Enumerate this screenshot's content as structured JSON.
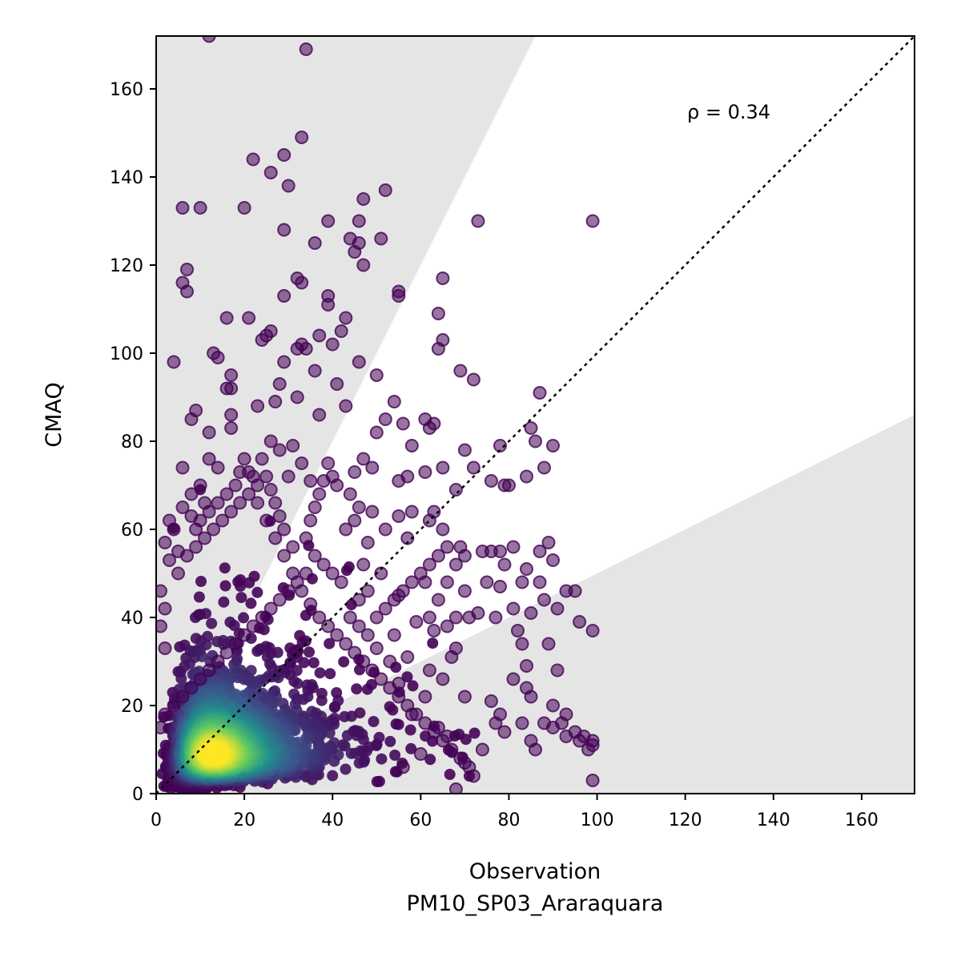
{
  "chart_data": {
    "type": "scatter",
    "title": "",
    "xlabel": "Observation",
    "xlabel_line2": "PM10_SP03_Araraquara",
    "ylabel": "CMAQ",
    "xlim": [
      0,
      172
    ],
    "ylim": [
      0,
      172
    ],
    "xticks": [
      0,
      20,
      40,
      60,
      80,
      100,
      120,
      140,
      160
    ],
    "yticks": [
      0,
      20,
      40,
      60,
      80,
      100,
      120,
      140,
      160
    ],
    "xtick_labels": [
      "0",
      "20",
      "40",
      "60",
      "80",
      "100",
      "120",
      "140",
      "160"
    ],
    "ytick_labels": [
      "0",
      "20",
      "40",
      "60",
      "80",
      "100",
      "120",
      "140",
      "160"
    ],
    "annotation": "ρ = 0.34",
    "reference_line": {
      "slope": 1,
      "style": "dotted",
      "color": "#000000"
    },
    "shaded_regions": [
      {
        "description": "above factor-of-2 band",
        "lower_slope": 2,
        "color": "#e5e5e5"
      },
      {
        "description": "below factor-of-2 band",
        "upper_slope": 0.5,
        "color": "#e5e5e5"
      }
    ],
    "density_peak": {
      "x": 13,
      "y": 9
    },
    "colormap": [
      "#440154",
      "#3b528b",
      "#21918c",
      "#5ec962",
      "#fde725"
    ],
    "grid": false,
    "legend": "none",
    "series": [
      {
        "points": [
          [
            12,
            172
          ],
          [
            34,
            169
          ],
          [
            33,
            149
          ],
          [
            22,
            144
          ],
          [
            29,
            145
          ],
          [
            26,
            141
          ],
          [
            30,
            138
          ],
          [
            52,
            137
          ],
          [
            6,
            133
          ],
          [
            10,
            133
          ],
          [
            20,
            133
          ],
          [
            47,
            135
          ],
          [
            73,
            130
          ],
          [
            99,
            130
          ],
          [
            39,
            130
          ],
          [
            46,
            130
          ],
          [
            29,
            128
          ],
          [
            44,
            126
          ],
          [
            51,
            126
          ],
          [
            46,
            125
          ],
          [
            36,
            125
          ],
          [
            45,
            123
          ],
          [
            47,
            120
          ],
          [
            7,
            119
          ],
          [
            6,
            116
          ],
          [
            7,
            114
          ],
          [
            32,
            117
          ],
          [
            33,
            116
          ],
          [
            65,
            117
          ],
          [
            55,
            114
          ],
          [
            39,
            113
          ],
          [
            29,
            113
          ],
          [
            55,
            113
          ],
          [
            39,
            111
          ],
          [
            43,
            108
          ],
          [
            16,
            108
          ],
          [
            21,
            108
          ],
          [
            26,
            105
          ],
          [
            25,
            104
          ],
          [
            24,
            103
          ],
          [
            42,
            105
          ],
          [
            33,
            102
          ],
          [
            34,
            101
          ],
          [
            32,
            101
          ],
          [
            37,
            104
          ],
          [
            64,
            109
          ],
          [
            65,
            103
          ],
          [
            64,
            101
          ],
          [
            4,
            98
          ],
          [
            13,
            100
          ],
          [
            14,
            99
          ],
          [
            40,
            102
          ],
          [
            29,
            98
          ],
          [
            36,
            96
          ],
          [
            46,
            98
          ],
          [
            50,
            95
          ],
          [
            69,
            96
          ],
          [
            72,
            94
          ],
          [
            17,
            95
          ],
          [
            28,
            93
          ],
          [
            41,
            93
          ],
          [
            54,
            89
          ],
          [
            16,
            92
          ],
          [
            17,
            92
          ],
          [
            23,
            88
          ],
          [
            27,
            89
          ],
          [
            32,
            90
          ],
          [
            43,
            88
          ],
          [
            37,
            86
          ],
          [
            9,
            87
          ],
          [
            8,
            85
          ],
          [
            17,
            86
          ],
          [
            12,
            82
          ],
          [
            17,
            83
          ],
          [
            52,
            85
          ],
          [
            56,
            84
          ],
          [
            61,
            85
          ],
          [
            62,
            83
          ],
          [
            63,
            84
          ],
          [
            50,
            82
          ],
          [
            58,
            79
          ],
          [
            70,
            78
          ],
          [
            87,
            91
          ],
          [
            85,
            83
          ],
          [
            86,
            80
          ],
          [
            90,
            79
          ],
          [
            88,
            74
          ],
          [
            84,
            72
          ],
          [
            78,
            79
          ],
          [
            72,
            74
          ],
          [
            76,
            71
          ],
          [
            79,
            70
          ],
          [
            80,
            70
          ],
          [
            68,
            69
          ],
          [
            61,
            73
          ],
          [
            65,
            74
          ],
          [
            57,
            72
          ],
          [
            55,
            71
          ],
          [
            49,
            74
          ],
          [
            47,
            76
          ],
          [
            45,
            73
          ],
          [
            39,
            75
          ],
          [
            63,
            64
          ],
          [
            62,
            62
          ],
          [
            65,
            60
          ],
          [
            69,
            56
          ],
          [
            70,
            54
          ],
          [
            74,
            55
          ],
          [
            76,
            55
          ],
          [
            78,
            55
          ],
          [
            79,
            52
          ],
          [
            75,
            48
          ],
          [
            78,
            47
          ],
          [
            70,
            46
          ],
          [
            81,
            56
          ],
          [
            87,
            55
          ],
          [
            89,
            57
          ],
          [
            90,
            53
          ],
          [
            84,
            51
          ],
          [
            83,
            48
          ],
          [
            87,
            48
          ],
          [
            88,
            44
          ],
          [
            93,
            46
          ],
          [
            95,
            46
          ],
          [
            91,
            42
          ],
          [
            85,
            41
          ],
          [
            81,
            42
          ],
          [
            77,
            40
          ],
          [
            73,
            41
          ],
          [
            71,
            40
          ],
          [
            68,
            40
          ],
          [
            96,
            39
          ],
          [
            99,
            37
          ],
          [
            82,
            37
          ],
          [
            83,
            34
          ],
          [
            89,
            34
          ],
          [
            84,
            29
          ],
          [
            91,
            28
          ],
          [
            81,
            26
          ],
          [
            84,
            24
          ],
          [
            85,
            22
          ],
          [
            90,
            20
          ],
          [
            93,
            18
          ],
          [
            92,
            16
          ],
          [
            95,
            14
          ],
          [
            97,
            13
          ],
          [
            99,
            12
          ],
          [
            99,
            11
          ],
          [
            98,
            10
          ],
          [
            99,
            3
          ],
          [
            96,
            12
          ],
          [
            93,
            13
          ],
          [
            90,
            15
          ],
          [
            88,
            16
          ],
          [
            85,
            12
          ],
          [
            86,
            10
          ],
          [
            83,
            16
          ],
          [
            79,
            14
          ],
          [
            78,
            18
          ],
          [
            77,
            16
          ],
          [
            76,
            21
          ],
          [
            70,
            22
          ],
          [
            68,
            1
          ],
          [
            72,
            4
          ],
          [
            70,
            7
          ],
          [
            74,
            10
          ],
          [
            66,
            13
          ],
          [
            64,
            15
          ],
          [
            60,
            9
          ],
          [
            56,
            6
          ],
          [
            58,
            18
          ],
          [
            55,
            25
          ],
          [
            57,
            31
          ],
          [
            53,
            30
          ],
          [
            50,
            33
          ],
          [
            54,
            36
          ],
          [
            59,
            39
          ],
          [
            63,
            37
          ],
          [
            66,
            38
          ],
          [
            68,
            33
          ],
          [
            62,
            28
          ],
          [
            65,
            26
          ],
          [
            61,
            22
          ],
          [
            67,
            31
          ],
          [
            61,
            48
          ],
          [
            55,
            45
          ],
          [
            51,
            50
          ],
          [
            47,
            52
          ],
          [
            48,
            57
          ],
          [
            52,
            60
          ],
          [
            57,
            58
          ],
          [
            58,
            64
          ],
          [
            55,
            63
          ],
          [
            49,
            64
          ],
          [
            45,
            62
          ],
          [
            43,
            60
          ],
          [
            46,
            65
          ],
          [
            44,
            68
          ],
          [
            41,
            70
          ],
          [
            38,
            71
          ],
          [
            40,
            72
          ],
          [
            37,
            68
          ],
          [
            36,
            65
          ],
          [
            35,
            62
          ],
          [
            34,
            58
          ],
          [
            31,
            56
          ],
          [
            29,
            60
          ],
          [
            28,
            63
          ],
          [
            27,
            66
          ],
          [
            26,
            69
          ],
          [
            25,
            72
          ],
          [
            23,
            70
          ],
          [
            21,
            73
          ],
          [
            20,
            76
          ],
          [
            19,
            73
          ],
          [
            18,
            70
          ],
          [
            16,
            68
          ],
          [
            14,
            66
          ],
          [
            12,
            64
          ],
          [
            10,
            62
          ],
          [
            8,
            63
          ],
          [
            6,
            65
          ],
          [
            4,
            60
          ],
          [
            3,
            62
          ],
          [
            2,
            57
          ],
          [
            3,
            53
          ],
          [
            1,
            46
          ],
          [
            2,
            42
          ],
          [
            1,
            38
          ],
          [
            2,
            33
          ],
          [
            5,
            50
          ],
          [
            7,
            54
          ],
          [
            9,
            56
          ],
          [
            11,
            58
          ],
          [
            13,
            60
          ],
          [
            15,
            62
          ],
          [
            17,
            64
          ],
          [
            19,
            66
          ],
          [
            21,
            68
          ],
          [
            23,
            66
          ],
          [
            25,
            62
          ],
          [
            27,
            58
          ],
          [
            29,
            54
          ],
          [
            31,
            50
          ],
          [
            33,
            46
          ],
          [
            35,
            43
          ],
          [
            37,
            40
          ],
          [
            39,
            38
          ],
          [
            41,
            36
          ],
          [
            43,
            34
          ],
          [
            45,
            32
          ],
          [
            47,
            30
          ],
          [
            49,
            28
          ],
          [
            51,
            26
          ],
          [
            53,
            24
          ],
          [
            55,
            22
          ],
          [
            57,
            20
          ],
          [
            59,
            18
          ],
          [
            61,
            16
          ],
          [
            63,
            14
          ],
          [
            65,
            12
          ],
          [
            67,
            10
          ],
          [
            69,
            8
          ],
          [
            71,
            6
          ],
          [
            46,
            44
          ],
          [
            48,
            46
          ],
          [
            42,
            48
          ],
          [
            40,
            50
          ],
          [
            38,
            52
          ],
          [
            36,
            54
          ],
          [
            34,
            50
          ],
          [
            32,
            48
          ],
          [
            30,
            46
          ],
          [
            28,
            44
          ],
          [
            26,
            42
          ],
          [
            24,
            40
          ],
          [
            22,
            38
          ],
          [
            20,
            36
          ],
          [
            18,
            34
          ],
          [
            16,
            32
          ],
          [
            14,
            30
          ],
          [
            12,
            28
          ],
          [
            10,
            26
          ],
          [
            8,
            24
          ],
          [
            6,
            22
          ],
          [
            4,
            20
          ],
          [
            2,
            18
          ],
          [
            1,
            15
          ],
          [
            44,
            40
          ],
          [
            46,
            38
          ],
          [
            48,
            36
          ],
          [
            50,
            40
          ],
          [
            52,
            42
          ],
          [
            54,
            44
          ],
          [
            56,
            46
          ],
          [
            58,
            48
          ],
          [
            60,
            50
          ],
          [
            62,
            52
          ],
          [
            64,
            54
          ],
          [
            66,
            56
          ],
          [
            68,
            52
          ],
          [
            66,
            48
          ],
          [
            64,
            44
          ],
          [
            62,
            40
          ],
          [
            30,
            72
          ],
          [
            28,
            78
          ],
          [
            26,
            80
          ],
          [
            24,
            76
          ],
          [
            22,
            72
          ],
          [
            33,
            75
          ],
          [
            35,
            71
          ],
          [
            31,
            79
          ],
          [
            14,
            74
          ],
          [
            12,
            76
          ],
          [
            10,
            70
          ],
          [
            8,
            68
          ],
          [
            6,
            74
          ],
          [
            11,
            66
          ],
          [
            9,
            60
          ],
          [
            5,
            55
          ]
        ],
        "dense_cloud": {
          "center": [
            14,
            10
          ],
          "note": "dense cloud of points concentrated at low values colored by point density"
        }
      }
    ]
  }
}
